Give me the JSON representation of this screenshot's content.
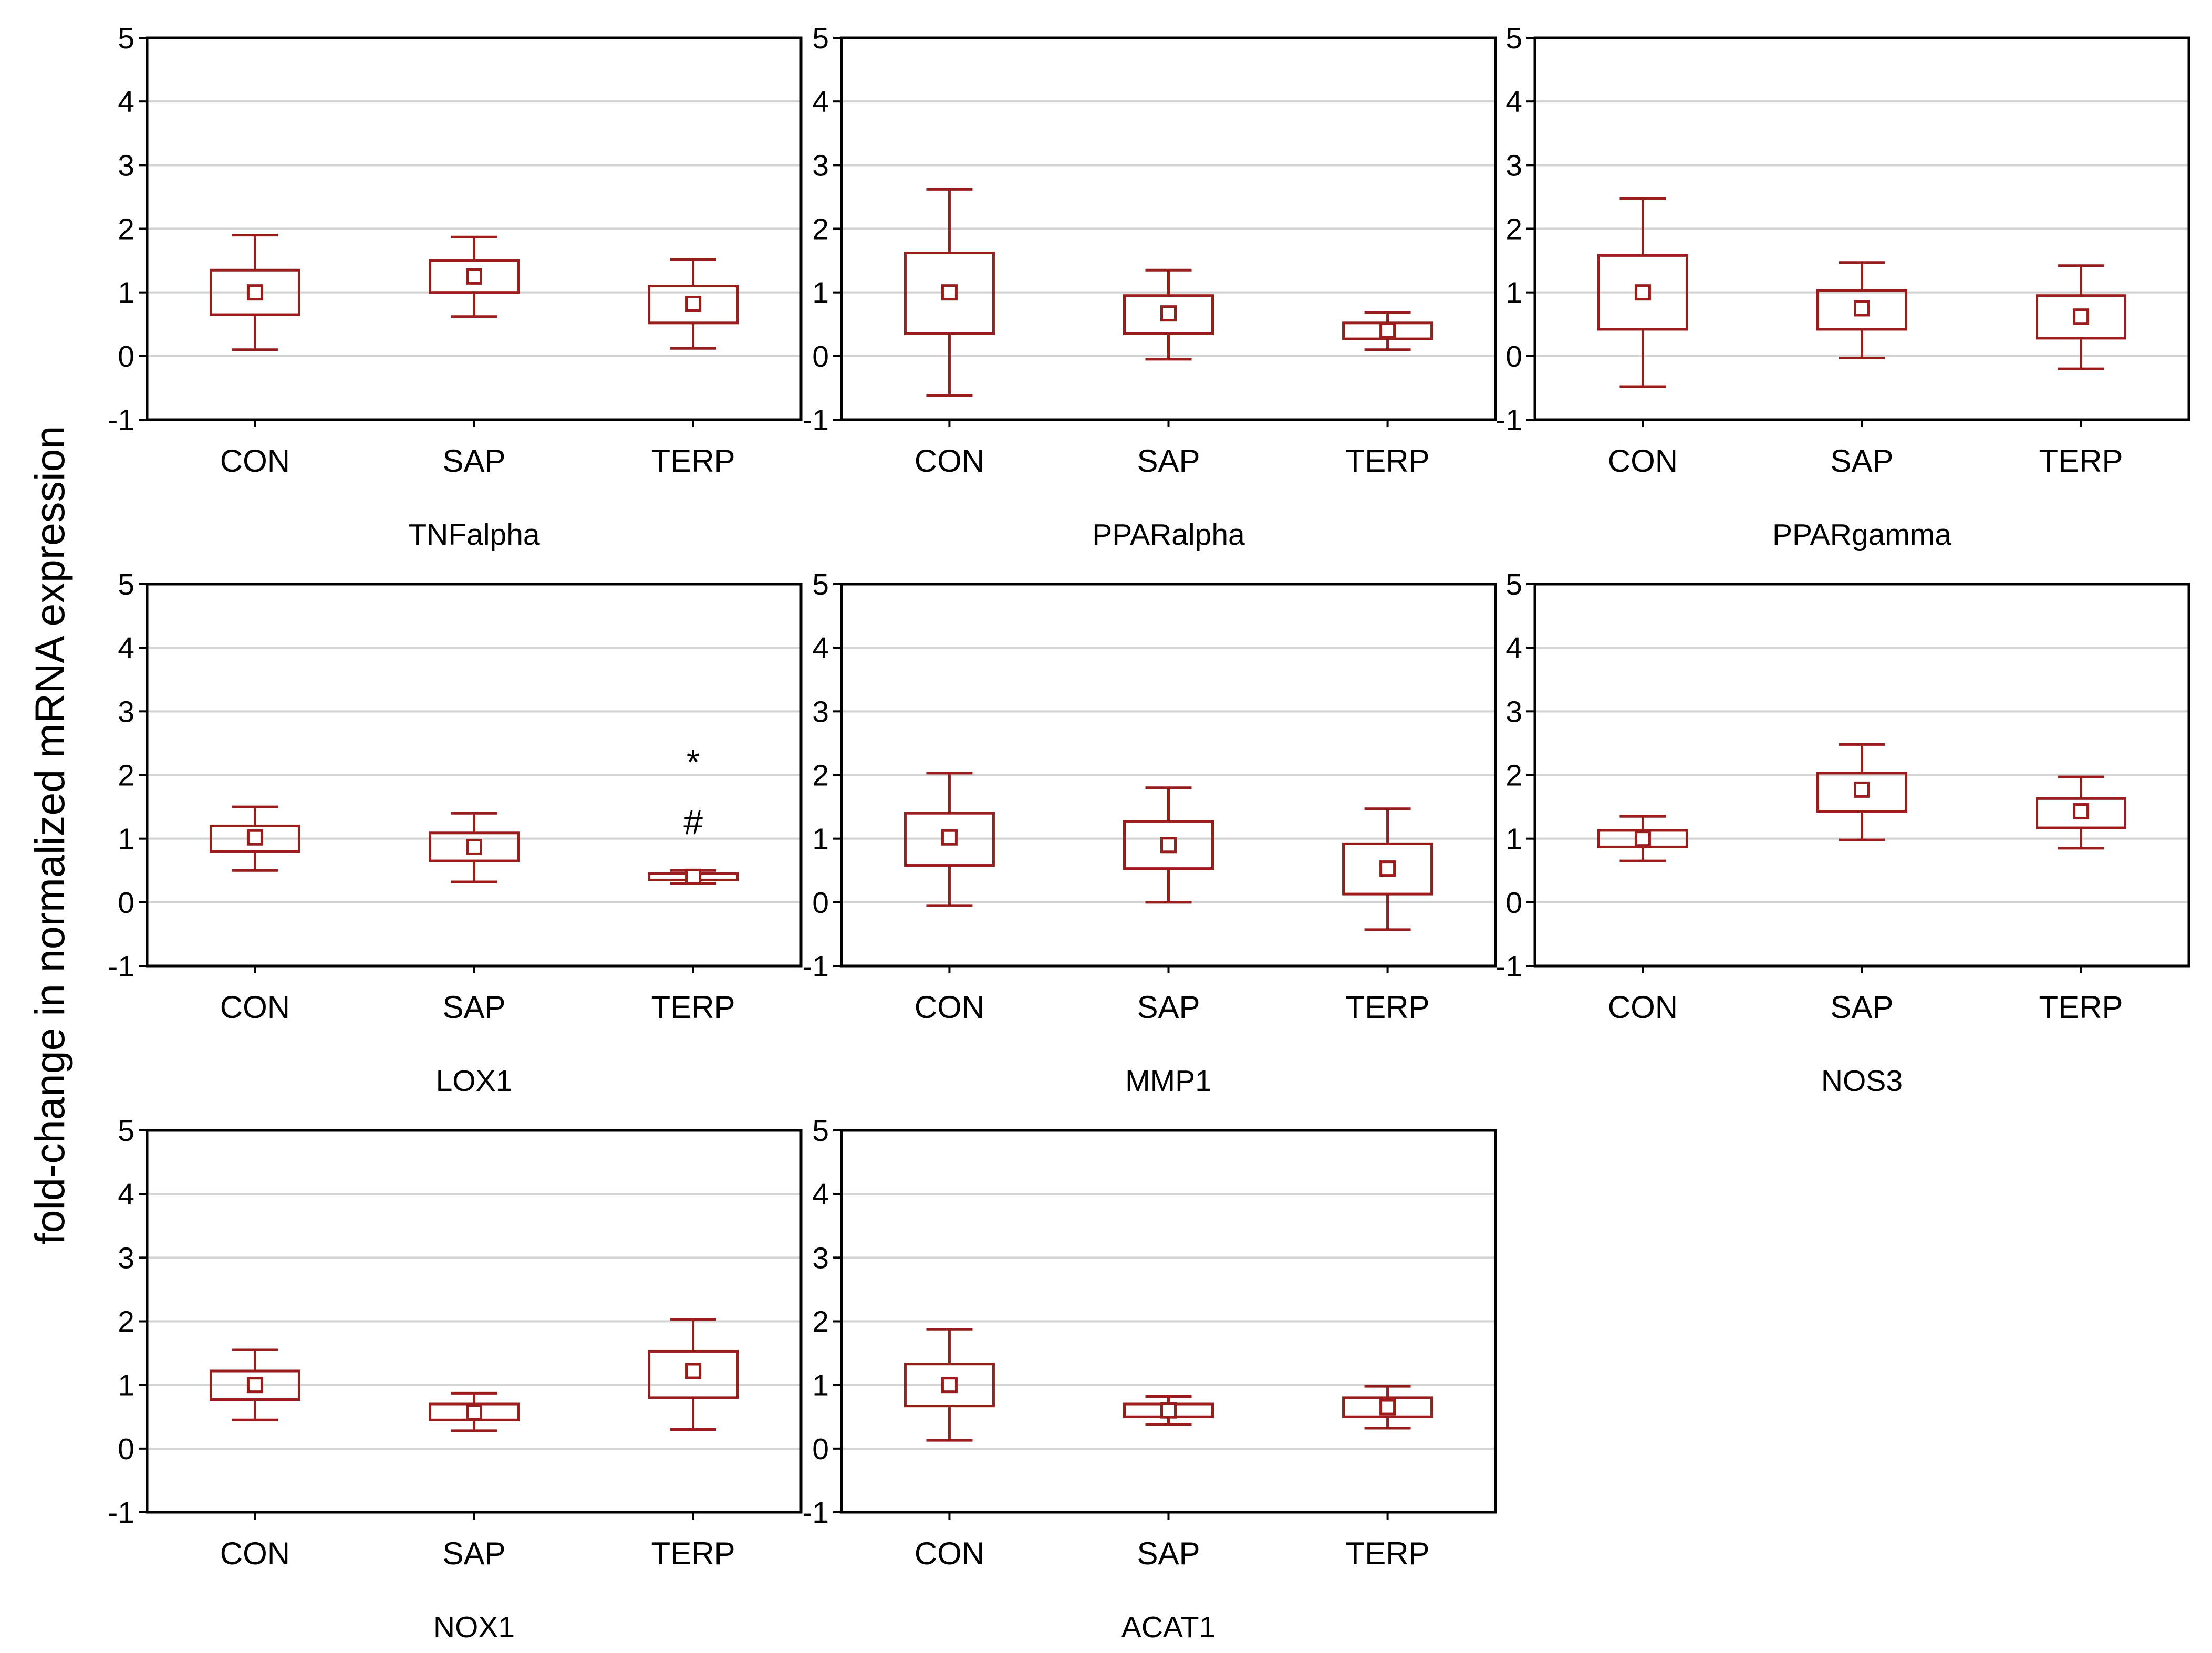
{
  "colors": {
    "box": "#9b1c1c",
    "grid": "#d3d3d3",
    "frame": "#000000",
    "text": "#000000"
  },
  "chart_data": {
    "type": "box",
    "ylabel": "fold-change in normalized mRNA expression",
    "ylim": [
      -1,
      5
    ],
    "yticks": [
      5,
      4,
      3,
      2,
      1,
      0,
      -1
    ],
    "grid": true,
    "categories": [
      "CON",
      "SAP",
      "TERP"
    ],
    "panels": [
      {
        "title": "TNFalpha",
        "groups": [
          {
            "category": "CON",
            "mean": 1.0,
            "box_low": 0.65,
            "box_high": 1.35,
            "whisker_low": 0.1,
            "whisker_high": 1.9
          },
          {
            "category": "SAP",
            "mean": 1.25,
            "box_low": 1.0,
            "box_high": 1.5,
            "whisker_low": 0.62,
            "whisker_high": 1.87
          },
          {
            "category": "TERP",
            "mean": 0.82,
            "box_low": 0.52,
            "box_high": 1.1,
            "whisker_low": 0.12,
            "whisker_high": 1.52
          }
        ]
      },
      {
        "title": "PPARalpha",
        "groups": [
          {
            "category": "CON",
            "mean": 1.0,
            "box_low": 0.35,
            "box_high": 1.62,
            "whisker_low": -0.62,
            "whisker_high": 2.62
          },
          {
            "category": "SAP",
            "mean": 0.67,
            "box_low": 0.35,
            "box_high": 0.95,
            "whisker_low": -0.05,
            "whisker_high": 1.35
          },
          {
            "category": "TERP",
            "mean": 0.4,
            "box_low": 0.27,
            "box_high": 0.52,
            "whisker_low": 0.1,
            "whisker_high": 0.68
          }
        ]
      },
      {
        "title": "PPARgamma",
        "groups": [
          {
            "category": "CON",
            "mean": 1.0,
            "box_low": 0.42,
            "box_high": 1.58,
            "whisker_low": -0.48,
            "whisker_high": 2.47
          },
          {
            "category": "SAP",
            "mean": 0.75,
            "box_low": 0.42,
            "box_high": 1.03,
            "whisker_low": -0.03,
            "whisker_high": 1.47
          },
          {
            "category": "TERP",
            "mean": 0.62,
            "box_low": 0.28,
            "box_high": 0.95,
            "whisker_low": -0.2,
            "whisker_high": 1.42
          }
        ]
      },
      {
        "title": "LOX1",
        "groups": [
          {
            "category": "CON",
            "mean": 1.02,
            "box_low": 0.8,
            "box_high": 1.2,
            "whisker_low": 0.5,
            "whisker_high": 1.5
          },
          {
            "category": "SAP",
            "mean": 0.87,
            "box_low": 0.65,
            "box_high": 1.09,
            "whisker_low": 0.32,
            "whisker_high": 1.4
          },
          {
            "category": "TERP",
            "mean": 0.4,
            "box_low": 0.35,
            "box_high": 0.45,
            "whisker_low": 0.3,
            "whisker_high": 0.5,
            "annotations": [
              "*",
              "#"
            ]
          }
        ]
      },
      {
        "title": "MMP1",
        "groups": [
          {
            "category": "CON",
            "mean": 1.02,
            "box_low": 0.58,
            "box_high": 1.4,
            "whisker_low": -0.05,
            "whisker_high": 2.03
          },
          {
            "category": "SAP",
            "mean": 0.9,
            "box_low": 0.53,
            "box_high": 1.27,
            "whisker_low": 0.0,
            "whisker_high": 1.8
          },
          {
            "category": "TERP",
            "mean": 0.53,
            "box_low": 0.13,
            "box_high": 0.92,
            "whisker_low": -0.43,
            "whisker_high": 1.47
          }
        ]
      },
      {
        "title": "NOS3",
        "groups": [
          {
            "category": "CON",
            "mean": 1.0,
            "box_low": 0.87,
            "box_high": 1.13,
            "whisker_low": 0.65,
            "whisker_high": 1.35
          },
          {
            "category": "SAP",
            "mean": 1.77,
            "box_low": 1.43,
            "box_high": 2.03,
            "whisker_low": 0.98,
            "whisker_high": 2.48
          },
          {
            "category": "TERP",
            "mean": 1.43,
            "box_low": 1.17,
            "box_high": 1.63,
            "whisker_low": 0.85,
            "whisker_high": 1.97
          }
        ]
      },
      {
        "title": "NOX1",
        "groups": [
          {
            "category": "CON",
            "mean": 1.0,
            "box_low": 0.77,
            "box_high": 1.22,
            "whisker_low": 0.45,
            "whisker_high": 1.55
          },
          {
            "category": "SAP",
            "mean": 0.57,
            "box_low": 0.45,
            "box_high": 0.7,
            "whisker_low": 0.28,
            "whisker_high": 0.87
          },
          {
            "category": "TERP",
            "mean": 1.22,
            "box_low": 0.8,
            "box_high": 1.53,
            "whisker_low": 0.3,
            "whisker_high": 2.03
          }
        ]
      },
      {
        "title": "ACAT1",
        "groups": [
          {
            "category": "CON",
            "mean": 1.0,
            "box_low": 0.67,
            "box_high": 1.33,
            "whisker_low": 0.13,
            "whisker_high": 1.87
          },
          {
            "category": "SAP",
            "mean": 0.6,
            "box_low": 0.5,
            "box_high": 0.7,
            "whisker_low": 0.38,
            "whisker_high": 0.82
          },
          {
            "category": "TERP",
            "mean": 0.65,
            "box_low": 0.5,
            "box_high": 0.8,
            "whisker_low": 0.32,
            "whisker_high": 0.98
          }
        ]
      }
    ]
  }
}
